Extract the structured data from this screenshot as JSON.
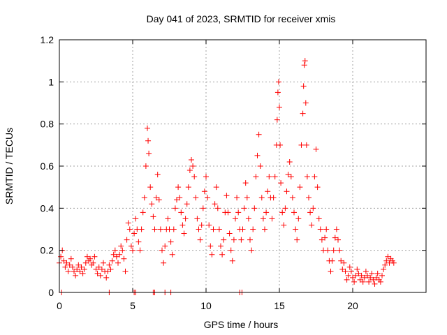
{
  "chart_data": {
    "type": "scatter",
    "title": "Day 041 of 2023, SRMTID for receiver xmis",
    "xlabel": "GPS time / hours",
    "ylabel": "SRMTID / TECUs",
    "xlim": [
      0,
      25
    ],
    "ylim": [
      0,
      1.2
    ],
    "xticks": [
      0,
      5,
      10,
      15,
      20
    ],
    "xtick_labels": [
      "0",
      "5",
      "10",
      "15",
      "20"
    ],
    "yticks": [
      0,
      0.2,
      0.4,
      0.6,
      0.8,
      1.0,
      1.2
    ],
    "ytick_labels": [
      "0",
      "0.2",
      "0.4",
      "0.6",
      "0.8",
      "1",
      "1.2"
    ],
    "grid": true,
    "marker": "plus",
    "color": "#ff0000",
    "series": [
      {
        "name": "SRMTID",
        "points": [
          [
            0.0,
            0.14
          ],
          [
            0.1,
            0.17
          ],
          [
            0.2,
            0.2
          ],
          [
            0.3,
            0.15
          ],
          [
            0.4,
            0.12
          ],
          [
            0.5,
            0.14
          ],
          [
            0.6,
            0.1
          ],
          [
            0.7,
            0.13
          ],
          [
            0.8,
            0.16
          ],
          [
            0.9,
            0.12
          ],
          [
            1.0,
            0.1
          ],
          [
            1.1,
            0.08
          ],
          [
            1.2,
            0.11
          ],
          [
            1.3,
            0.13
          ],
          [
            1.4,
            0.1
          ],
          [
            1.5,
            0.12
          ],
          [
            1.6,
            0.09
          ],
          [
            1.7,
            0.11
          ],
          [
            1.8,
            0.14
          ],
          [
            1.9,
            0.17
          ],
          [
            2.0,
            0.15
          ],
          [
            2.1,
            0.16
          ],
          [
            2.2,
            0.13
          ],
          [
            2.3,
            0.14
          ],
          [
            2.4,
            0.17
          ],
          [
            2.5,
            0.11
          ],
          [
            2.6,
            0.09
          ],
          [
            2.7,
            0.12
          ],
          [
            2.8,
            0.08
          ],
          [
            2.9,
            0.11
          ],
          [
            3.0,
            0.14
          ],
          [
            3.1,
            0.1
          ],
          [
            3.2,
            0.07
          ],
          [
            3.3,
            0.1
          ],
          [
            3.4,
            0.13
          ],
          [
            3.5,
            0.11
          ],
          [
            3.6,
            0.15
          ],
          [
            3.7,
            0.18
          ],
          [
            3.8,
            0.2
          ],
          [
            3.9,
            0.17
          ],
          [
            4.0,
            0.14
          ],
          [
            4.1,
            0.18
          ],
          [
            4.2,
            0.22
          ],
          [
            4.3,
            0.2
          ],
          [
            4.4,
            0.16
          ],
          [
            4.5,
            0.1
          ],
          [
            4.6,
            0.25
          ],
          [
            4.7,
            0.33
          ],
          [
            4.8,
            0.3
          ],
          [
            4.9,
            0.22
          ],
          [
            5.0,
            0.2
          ],
          [
            5.1,
            0.28
          ],
          [
            5.2,
            0.35
          ],
          [
            5.3,
            0.3
          ],
          [
            5.4,
            0.24
          ],
          [
            5.5,
            0.2
          ],
          [
            5.6,
            0.3
          ],
          [
            5.7,
            0.38
          ],
          [
            5.8,
            0.45
          ],
          [
            5.9,
            0.6
          ],
          [
            6.0,
            0.78
          ],
          [
            6.05,
            0.72
          ],
          [
            6.1,
            0.66
          ],
          [
            6.2,
            0.5
          ],
          [
            6.3,
            0.42
          ],
          [
            6.4,
            0.36
          ],
          [
            6.5,
            0.3
          ],
          [
            6.6,
            0.45
          ],
          [
            6.7,
            0.56
          ],
          [
            6.8,
            0.44
          ],
          [
            6.9,
            0.3
          ],
          [
            7.0,
            0.2
          ],
          [
            7.1,
            0.14
          ],
          [
            7.2,
            0.22
          ],
          [
            7.3,
            0.3
          ],
          [
            7.4,
            0.35
          ],
          [
            7.5,
            0.3
          ],
          [
            7.6,
            0.24
          ],
          [
            7.7,
            0.18
          ],
          [
            7.8,
            0.3
          ],
          [
            7.9,
            0.4
          ],
          [
            8.0,
            0.44
          ],
          [
            8.1,
            0.5
          ],
          [
            8.2,
            0.45
          ],
          [
            8.3,
            0.38
          ],
          [
            8.4,
            0.32
          ],
          [
            8.5,
            0.28
          ],
          [
            8.6,
            0.35
          ],
          [
            8.7,
            0.42
          ],
          [
            8.8,
            0.5
          ],
          [
            8.9,
            0.58
          ],
          [
            9.0,
            0.63
          ],
          [
            9.1,
            0.6
          ],
          [
            9.2,
            0.55
          ],
          [
            9.3,
            0.45
          ],
          [
            9.4,
            0.35
          ],
          [
            9.5,
            0.3
          ],
          [
            9.6,
            0.25
          ],
          [
            9.7,
            0.32
          ],
          [
            9.8,
            0.4
          ],
          [
            9.9,
            0.48
          ],
          [
            10.0,
            0.55
          ],
          [
            10.1,
            0.45
          ],
          [
            10.2,
            0.32
          ],
          [
            10.3,
            0.22
          ],
          [
            10.4,
            0.18
          ],
          [
            10.5,
            0.3
          ],
          [
            10.6,
            0.42
          ],
          [
            10.7,
            0.5
          ],
          [
            10.8,
            0.4
          ],
          [
            10.9,
            0.3
          ],
          [
            11.0,
            0.22
          ],
          [
            11.1,
            0.18
          ],
          [
            11.2,
            0.25
          ],
          [
            11.3,
            0.38
          ],
          [
            11.4,
            0.46
          ],
          [
            11.5,
            0.38
          ],
          [
            11.6,
            0.28
          ],
          [
            11.7,
            0.2
          ],
          [
            11.8,
            0.15
          ],
          [
            11.9,
            0.25
          ],
          [
            12.0,
            0.35
          ],
          [
            12.1,
            0.45
          ],
          [
            12.2,
            0.38
          ],
          [
            12.3,
            0.3
          ],
          [
            12.4,
            0.25
          ],
          [
            12.5,
            0.3
          ],
          [
            12.6,
            0.4
          ],
          [
            12.7,
            0.52
          ],
          [
            12.8,
            0.45
          ],
          [
            12.9,
            0.35
          ],
          [
            13.0,
            0.25
          ],
          [
            13.1,
            0.2
          ],
          [
            13.2,
            0.3
          ],
          [
            13.3,
            0.4
          ],
          [
            13.4,
            0.55
          ],
          [
            13.5,
            0.65
          ],
          [
            13.6,
            0.75
          ],
          [
            13.7,
            0.6
          ],
          [
            13.8,
            0.45
          ],
          [
            13.9,
            0.35
          ],
          [
            14.0,
            0.3
          ],
          [
            14.1,
            0.38
          ],
          [
            14.2,
            0.48
          ],
          [
            14.3,
            0.55
          ],
          [
            14.4,
            0.45
          ],
          [
            14.5,
            0.35
          ],
          [
            14.6,
            0.45
          ],
          [
            14.7,
            0.55
          ],
          [
            14.8,
            0.7
          ],
          [
            14.85,
            0.82
          ],
          [
            14.9,
            0.95
          ],
          [
            14.95,
            1.0
          ],
          [
            15.0,
            0.88
          ],
          [
            15.05,
            0.7
          ],
          [
            15.1,
            0.52
          ],
          [
            15.2,
            0.38
          ],
          [
            15.3,
            0.32
          ],
          [
            15.4,
            0.4
          ],
          [
            15.5,
            0.48
          ],
          [
            15.6,
            0.56
          ],
          [
            15.7,
            0.62
          ],
          [
            15.8,
            0.55
          ],
          [
            15.9,
            0.45
          ],
          [
            16.0,
            0.38
          ],
          [
            16.1,
            0.3
          ],
          [
            16.2,
            0.25
          ],
          [
            16.3,
            0.35
          ],
          [
            16.4,
            0.5
          ],
          [
            16.5,
            0.7
          ],
          [
            16.6,
            0.85
          ],
          [
            16.65,
            0.98
          ],
          [
            16.7,
            1.08
          ],
          [
            16.75,
            1.1
          ],
          [
            16.8,
            0.9
          ],
          [
            16.85,
            0.7
          ],
          [
            16.9,
            0.55
          ],
          [
            17.0,
            0.45
          ],
          [
            17.1,
            0.38
          ],
          [
            17.2,
            0.32
          ],
          [
            17.3,
            0.4
          ],
          [
            17.4,
            0.55
          ],
          [
            17.5,
            0.68
          ],
          [
            17.6,
            0.5
          ],
          [
            17.7,
            0.35
          ],
          [
            17.8,
            0.3
          ],
          [
            17.9,
            0.25
          ],
          [
            18.0,
            0.2
          ],
          [
            18.1,
            0.26
          ],
          [
            18.2,
            0.3
          ],
          [
            18.3,
            0.2
          ],
          [
            18.4,
            0.15
          ],
          [
            18.5,
            0.1
          ],
          [
            18.6,
            0.15
          ],
          [
            18.7,
            0.2
          ],
          [
            18.8,
            0.26
          ],
          [
            18.9,
            0.3
          ],
          [
            19.0,
            0.25
          ],
          [
            19.1,
            0.2
          ],
          [
            19.2,
            0.15
          ],
          [
            19.3,
            0.11
          ],
          [
            19.4,
            0.14
          ],
          [
            19.5,
            0.1
          ],
          [
            19.6,
            0.06
          ],
          [
            19.7,
            0.08
          ],
          [
            19.8,
            0.12
          ],
          [
            19.9,
            0.1
          ],
          [
            20.0,
            0.07
          ],
          [
            20.1,
            0.05
          ],
          [
            20.2,
            0.08
          ],
          [
            20.3,
            0.11
          ],
          [
            20.4,
            0.09
          ],
          [
            20.5,
            0.06
          ],
          [
            20.6,
            0.08
          ],
          [
            20.7,
            0.05
          ],
          [
            20.8,
            0.07
          ],
          [
            20.9,
            0.1
          ],
          [
            21.0,
            0.08
          ],
          [
            21.1,
            0.05
          ],
          [
            21.2,
            0.07
          ],
          [
            21.3,
            0.09
          ],
          [
            21.4,
            0.06
          ],
          [
            21.5,
            0.04
          ],
          [
            21.6,
            0.07
          ],
          [
            21.7,
            0.09
          ],
          [
            21.8,
            0.06
          ],
          [
            21.9,
            0.05
          ],
          [
            22.0,
            0.08
          ],
          [
            22.1,
            0.11
          ],
          [
            22.2,
            0.13
          ],
          [
            22.3,
            0.15
          ],
          [
            22.4,
            0.17
          ],
          [
            22.5,
            0.14
          ],
          [
            22.6,
            0.16
          ],
          [
            22.7,
            0.15
          ],
          [
            22.8,
            0.14
          ],
          [
            0.15,
            0.0
          ],
          [
            3.4,
            0.0
          ],
          [
            5.1,
            0.0
          ],
          [
            5.2,
            0.0
          ],
          [
            6.4,
            0.0
          ],
          [
            6.5,
            0.0
          ],
          [
            7.2,
            0.0
          ],
          [
            7.6,
            0.0
          ],
          [
            12.3,
            0.0
          ],
          [
            12.45,
            0.0
          ]
        ]
      }
    ]
  }
}
